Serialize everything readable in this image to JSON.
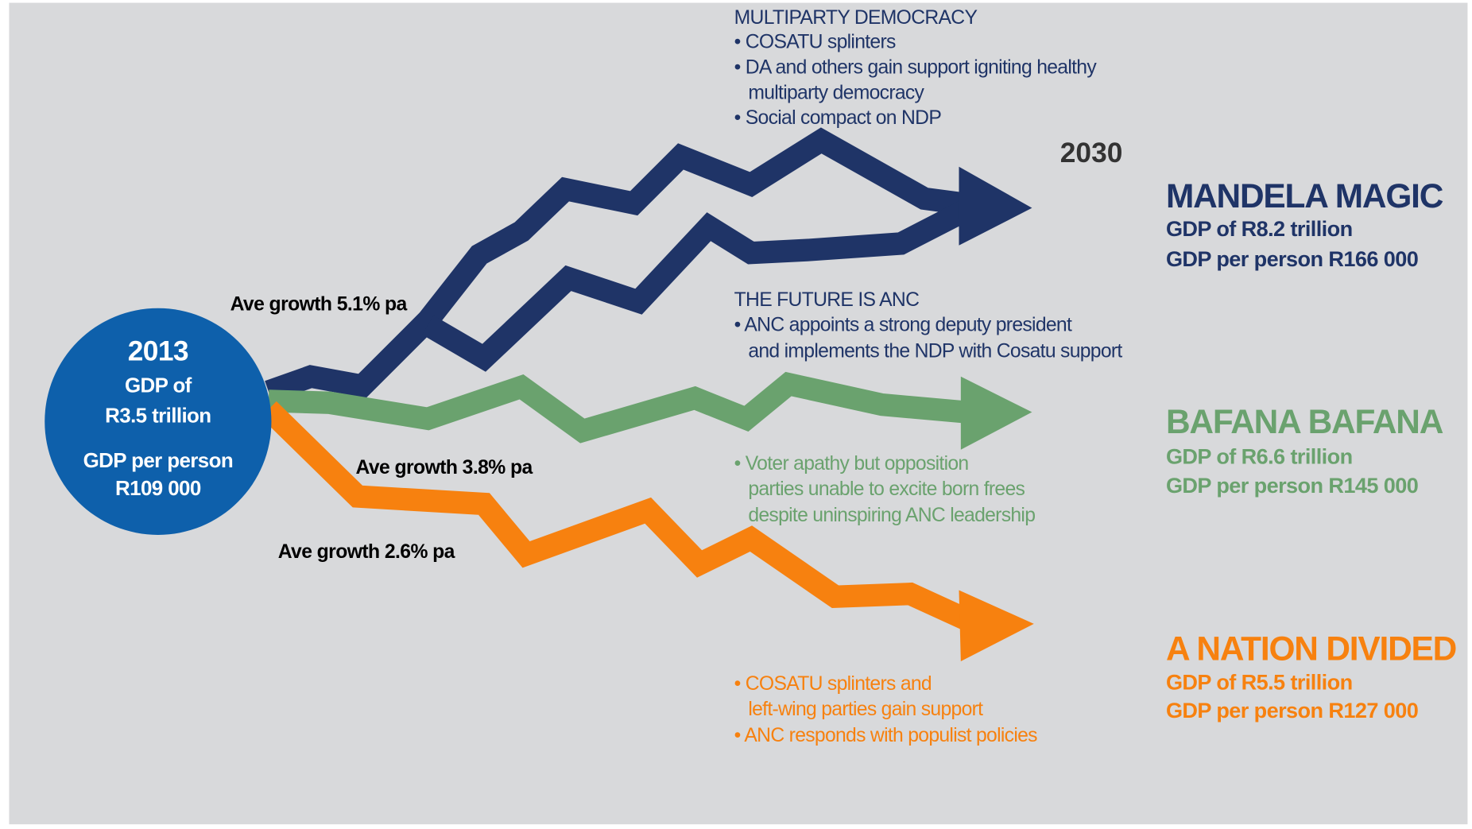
{
  "start": {
    "year": "2013",
    "lines": [
      "GDP of",
      "R3.5 trillion",
      "GDP per person",
      "R109 000"
    ]
  },
  "end_year": "2030",
  "growth_labels": [
    "Ave growth 5.1% pa",
    "Ave growth 3.8% pa",
    "Ave growth 2.6% pa"
  ],
  "scenarios": [
    {
      "name": "MANDELA MAGIC",
      "gdp": "GDP of R8.2 trillion",
      "gdp_per_person": "GDP per person R166 000",
      "color": "#1f3467"
    },
    {
      "name": "BAFANA BAFANA",
      "gdp": "GDP of R6.6 trillion",
      "gdp_per_person": "GDP per person R145 000",
      "color": "#6aa26e"
    },
    {
      "name": "A NATION DIVIDED",
      "gdp": "GDP of R5.5 trillion",
      "gdp_per_person": "GDP per person R127 000",
      "color": "#f7810f"
    }
  ],
  "notes": [
    {
      "heading": "MULTIPARTY DEMOCRACY",
      "lines": [
        "• COSATU splinters",
        "• DA and others gain support igniting healthy",
        "multiparty democracy",
        "• Social compact on NDP"
      ]
    },
    {
      "heading": "THE FUTURE IS ANC",
      "lines": [
        "• ANC appoints a strong deputy president",
        "and implements the NDP with Cosatu support"
      ]
    },
    {
      "lines": [
        "• Voter apathy but opposition",
        "parties unable to excite born frees",
        "despite uninspiring ANC leadership"
      ]
    },
    {
      "lines": [
        "• COSATU splinters and",
        "left-wing parties gain support",
        "• ANC responds with populist policies"
      ]
    }
  ]
}
